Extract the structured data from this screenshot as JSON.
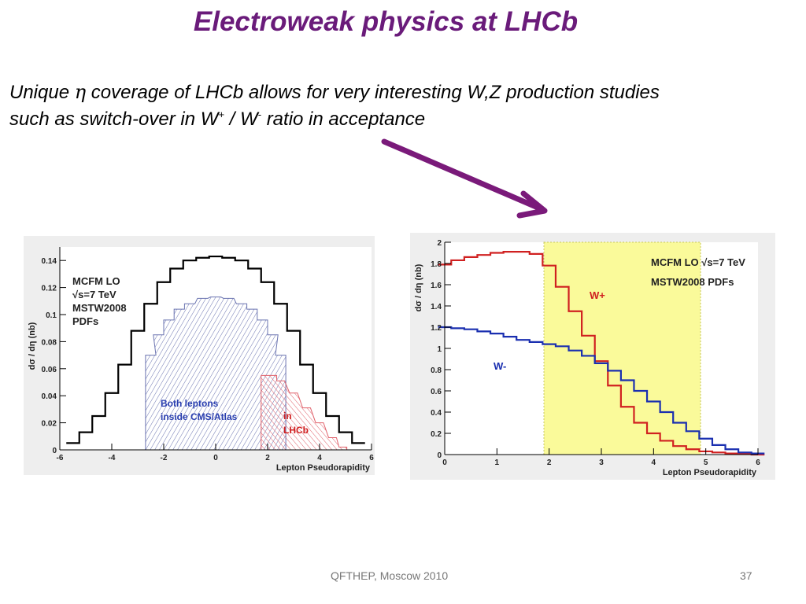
{
  "slide": {
    "title": "Electroweak physics at LHCb",
    "subtitle_line1_a": "Unique",
    "subtitle_eta": "η",
    "subtitle_line1_b": "coverage of LHCb allows for very interesting W,Z production studies",
    "subtitle_line2_a": "such as switch-over in W",
    "subtitle_plus": "+",
    "subtitle_slash": "/ W",
    "subtitle_minus": "-",
    "subtitle_line2_b": "ratio in acceptance",
    "footer": "QFTHEP, Moscow 2010",
    "page_number": "37",
    "arrow_color": "#7a1a7a"
  },
  "chart_data": [
    {
      "type": "line",
      "ylabel": "dσ / dη (nb)",
      "xlabel": "Lepton Pseudorapidity",
      "xlim": [
        -6,
        6
      ],
      "ylim": [
        0,
        0.15
      ],
      "x_ticks": [
        "-6",
        "-4",
        "-2",
        "0",
        "2",
        "4",
        "6"
      ],
      "y_ticks": [
        "0",
        "0.02",
        "0.04",
        "0.06",
        "0.08",
        "0.1",
        "0.12",
        "0.14"
      ],
      "grid": false,
      "legend_text": [
        "MCFM LO",
        "√s=7 TeV",
        "MSTW2008",
        "PDFs"
      ],
      "series": [
        {
          "color": "#000000",
          "x": [
            -5.5,
            -5,
            -4.5,
            -4,
            -3.5,
            -3,
            -2.5,
            -2,
            -1.5,
            -1,
            -0.5,
            0,
            0.5,
            1,
            1.5,
            2,
            2.5,
            3,
            3.5,
            4,
            4.5,
            5,
            5.5
          ],
          "y": [
            0.005,
            0.013,
            0.025,
            0.042,
            0.063,
            0.088,
            0.108,
            0.124,
            0.134,
            0.14,
            0.142,
            0.143,
            0.142,
            0.14,
            0.134,
            0.124,
            0.108,
            0.088,
            0.063,
            0.042,
            0.025,
            0.013,
            0.005
          ]
        },
        {
          "color": "#6a73b0",
          "x": [
            -2.5,
            -2.2,
            -1.8,
            -1.4,
            -1,
            -0.5,
            0,
            0.5,
            1,
            1.4,
            1.8,
            2.2,
            2.5
          ],
          "y": [
            0.07,
            0.085,
            0.096,
            0.104,
            0.108,
            0.112,
            0.113,
            0.112,
            0.108,
            0.104,
            0.096,
            0.085,
            0.07
          ]
        },
        {
          "color": "#e0606a",
          "x": [
            1.9,
            2.2,
            2.5,
            3,
            3.5,
            4,
            4.5,
            4.9
          ],
          "y": [
            0.055,
            0.055,
            0.051,
            0.042,
            0.031,
            0.02,
            0.009,
            0.002
          ]
        }
      ],
      "annotations": [
        {
          "text": "Both leptons",
          "color": "#2a3fb0"
        },
        {
          "text": "inside CMS/Atlas",
          "color": "#2a3fb0"
        },
        {
          "text": "in",
          "color": "#d02020"
        },
        {
          "text": "LHCb",
          "color": "#d02020"
        }
      ]
    },
    {
      "type": "line",
      "ylabel": "dσ / dη (nb)",
      "xlabel": "Lepton Pseudorapidity",
      "xlim": [
        0,
        6
      ],
      "ylim": [
        0,
        2
      ],
      "x_ticks": [
        "0",
        "1",
        "2",
        "3",
        "4",
        "5",
        "6"
      ],
      "y_ticks": [
        "0",
        "0.2",
        "0.4",
        "0.6",
        "0.8",
        "1",
        "1.2",
        "1.4",
        "1.6",
        "1.8",
        "2"
      ],
      "grid": false,
      "legend_text": [
        "MCFM LO √s=7 TeV",
        "MSTW2008 PDFs"
      ],
      "acceptance_band": [
        1.9,
        4.9
      ],
      "band_color": "#fafa9a",
      "series": [
        {
          "name": "W+",
          "color": "#d02020",
          "x": [
            0,
            0.25,
            0.5,
            0.75,
            1,
            1.25,
            1.5,
            1.75,
            2,
            2.25,
            2.5,
            2.75,
            3,
            3.25,
            3.5,
            3.75,
            4,
            4.25,
            4.5,
            4.75,
            5,
            5.25,
            5.5,
            5.75,
            6
          ],
          "y": [
            1.79,
            1.83,
            1.86,
            1.88,
            1.9,
            1.91,
            1.91,
            1.89,
            1.78,
            1.58,
            1.35,
            1.12,
            0.88,
            0.65,
            0.45,
            0.3,
            0.2,
            0.13,
            0.08,
            0.05,
            0.03,
            0.02,
            0.01,
            0.01,
            0.0
          ]
        },
        {
          "name": "W-",
          "color": "#1a2fb0",
          "x": [
            0,
            0.25,
            0.5,
            0.75,
            1,
            1.25,
            1.5,
            1.75,
            2,
            2.25,
            2.5,
            2.75,
            3,
            3.25,
            3.5,
            3.75,
            4,
            4.25,
            4.5,
            4.75,
            5,
            5.25,
            5.5,
            5.75,
            6
          ],
          "y": [
            1.2,
            1.19,
            1.18,
            1.16,
            1.14,
            1.11,
            1.08,
            1.06,
            1.04,
            1.02,
            0.98,
            0.93,
            0.86,
            0.79,
            0.7,
            0.6,
            0.5,
            0.4,
            0.3,
            0.22,
            0.15,
            0.09,
            0.05,
            0.02,
            0.01
          ]
        }
      ]
    }
  ]
}
